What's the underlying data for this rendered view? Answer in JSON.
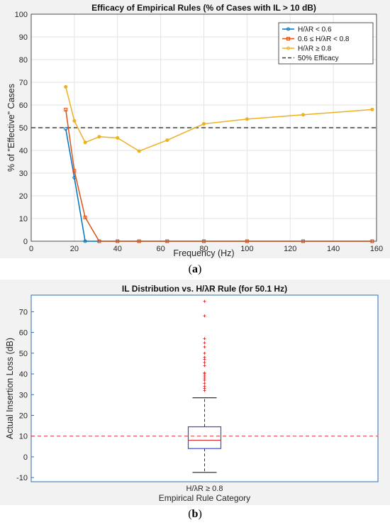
{
  "figure_a": {
    "caption_letter": "a",
    "chart_data": {
      "type": "line",
      "title": "Efficacy of Empirical Rules (% of Cases with IL > 10 dB)",
      "xlabel": "Frequency (Hz)",
      "ylabel": "% of \"Effective\" Cases",
      "xlim": [
        0,
        160
      ],
      "ylim": [
        0,
        100
      ],
      "xticks": [
        0,
        20,
        40,
        60,
        80,
        100,
        120,
        140,
        160
      ],
      "yticks": [
        0,
        10,
        20,
        30,
        40,
        50,
        60,
        70,
        80,
        90,
        100
      ],
      "grid": true,
      "legend_position": "top-right",
      "series": [
        {
          "name": "H/λR < 0.6",
          "color": "#0072bd",
          "marker": "circle",
          "x": [
            16,
            20,
            25,
            31.5,
            40,
            50,
            63,
            80,
            100,
            126,
            158
          ],
          "y": [
            49.5,
            28,
            0,
            0,
            0,
            0,
            0,
            0,
            0,
            0,
            0
          ]
        },
        {
          "name": "0.6 ≤ H/λR < 0.8",
          "color": "#d95319",
          "marker": "square",
          "x": [
            16,
            20,
            25,
            31.5,
            40,
            50,
            63,
            80,
            100,
            126,
            158
          ],
          "y": [
            58,
            31,
            10.5,
            0,
            0,
            0,
            0,
            0,
            0,
            0,
            0
          ]
        },
        {
          "name": "H/λR ≥ 0.8",
          "color": "#edb120",
          "marker": "circle",
          "x": [
            16,
            20,
            25,
            31.5,
            40,
            50,
            63,
            80,
            100,
            126,
            158
          ],
          "y": [
            68,
            53,
            43.5,
            46,
            45.5,
            39.7,
            44.5,
            51.7,
            53.8,
            55.7,
            58
          ]
        }
      ],
      "reference_line": {
        "name": "50% Efficacy",
        "y": 50,
        "color": "#404040",
        "style": "dashed"
      }
    }
  },
  "figure_b": {
    "caption_letter": "b",
    "chart_data": {
      "type": "box",
      "title": "IL Distribution vs. H/λR Rule (for 50.1 Hz)",
      "xlabel": "Empirical Rule Category",
      "ylabel": "Actual Insertion Loss (dB)",
      "ylim": [
        -12,
        78
      ],
      "yticks": [
        -10,
        0,
        10,
        20,
        30,
        40,
        50,
        60,
        70
      ],
      "categories": [
        "H/λR  ≥  0.8"
      ],
      "box": {
        "whisker_low": -7.5,
        "q1": 4,
        "median": 8,
        "q3": 14.5,
        "whisker_high": 28.5
      },
      "outliers": [
        32,
        33,
        34,
        35.5,
        37,
        38,
        39,
        40,
        40.5,
        44,
        45.5,
        47,
        48,
        50,
        53,
        55,
        57,
        68,
        75
      ],
      "reference_line": {
        "y": 10,
        "color": "#e03030",
        "style": "dashed"
      },
      "colors": {
        "box": "#3b4bd6",
        "median": "#e03030",
        "whisker": "#333333",
        "outlier": "#e03030",
        "frame": "#2c6fb0"
      }
    }
  }
}
